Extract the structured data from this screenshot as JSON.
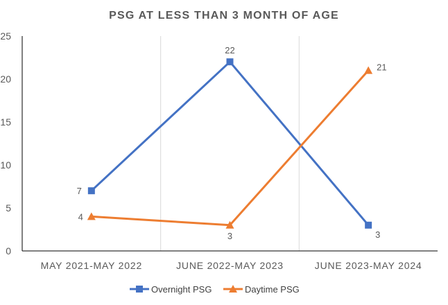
{
  "chart_data": {
    "type": "line",
    "title": "PSG AT LESS THAN 3 MONTH OF AGE",
    "categories": [
      "MAY 2021-MAY 2022",
      "JUNE 2022-MAY 2023",
      "JUNE 2023-MAY 2024"
    ],
    "ylim": [
      0,
      25
    ],
    "yticks": [
      0,
      5,
      10,
      15,
      20,
      25
    ],
    "grid": "vertical-between-categories",
    "legend_position": "bottom",
    "series": [
      {
        "name": "Overnight PSG",
        "values": [
          7,
          22,
          3
        ],
        "color": "#4472C4",
        "marker": "square"
      },
      {
        "name": "Daytime PSG",
        "values": [
          4,
          3,
          21
        ],
        "color": "#ED7D31",
        "marker": "triangle"
      }
    ]
  }
}
